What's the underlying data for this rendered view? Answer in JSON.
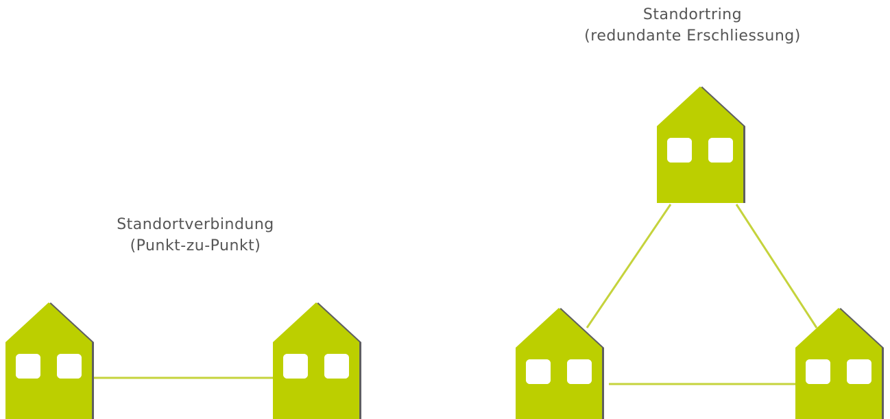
{
  "diagrams": {
    "point_to_point": {
      "title": "Standortverbindung",
      "subtitle": "(Punkt-zu-Punkt)"
    },
    "ring": {
      "title": "Standortring",
      "subtitle": "(redundante Erschliessung)"
    }
  },
  "colors": {
    "house_fill": "#bccf00",
    "house_shadow": "#5f5f5f",
    "window_fill": "#ffffff",
    "connection_line": "#c5d33c",
    "text": "#555555"
  },
  "icons": {
    "site": "house-icon",
    "window": "window-icon"
  }
}
